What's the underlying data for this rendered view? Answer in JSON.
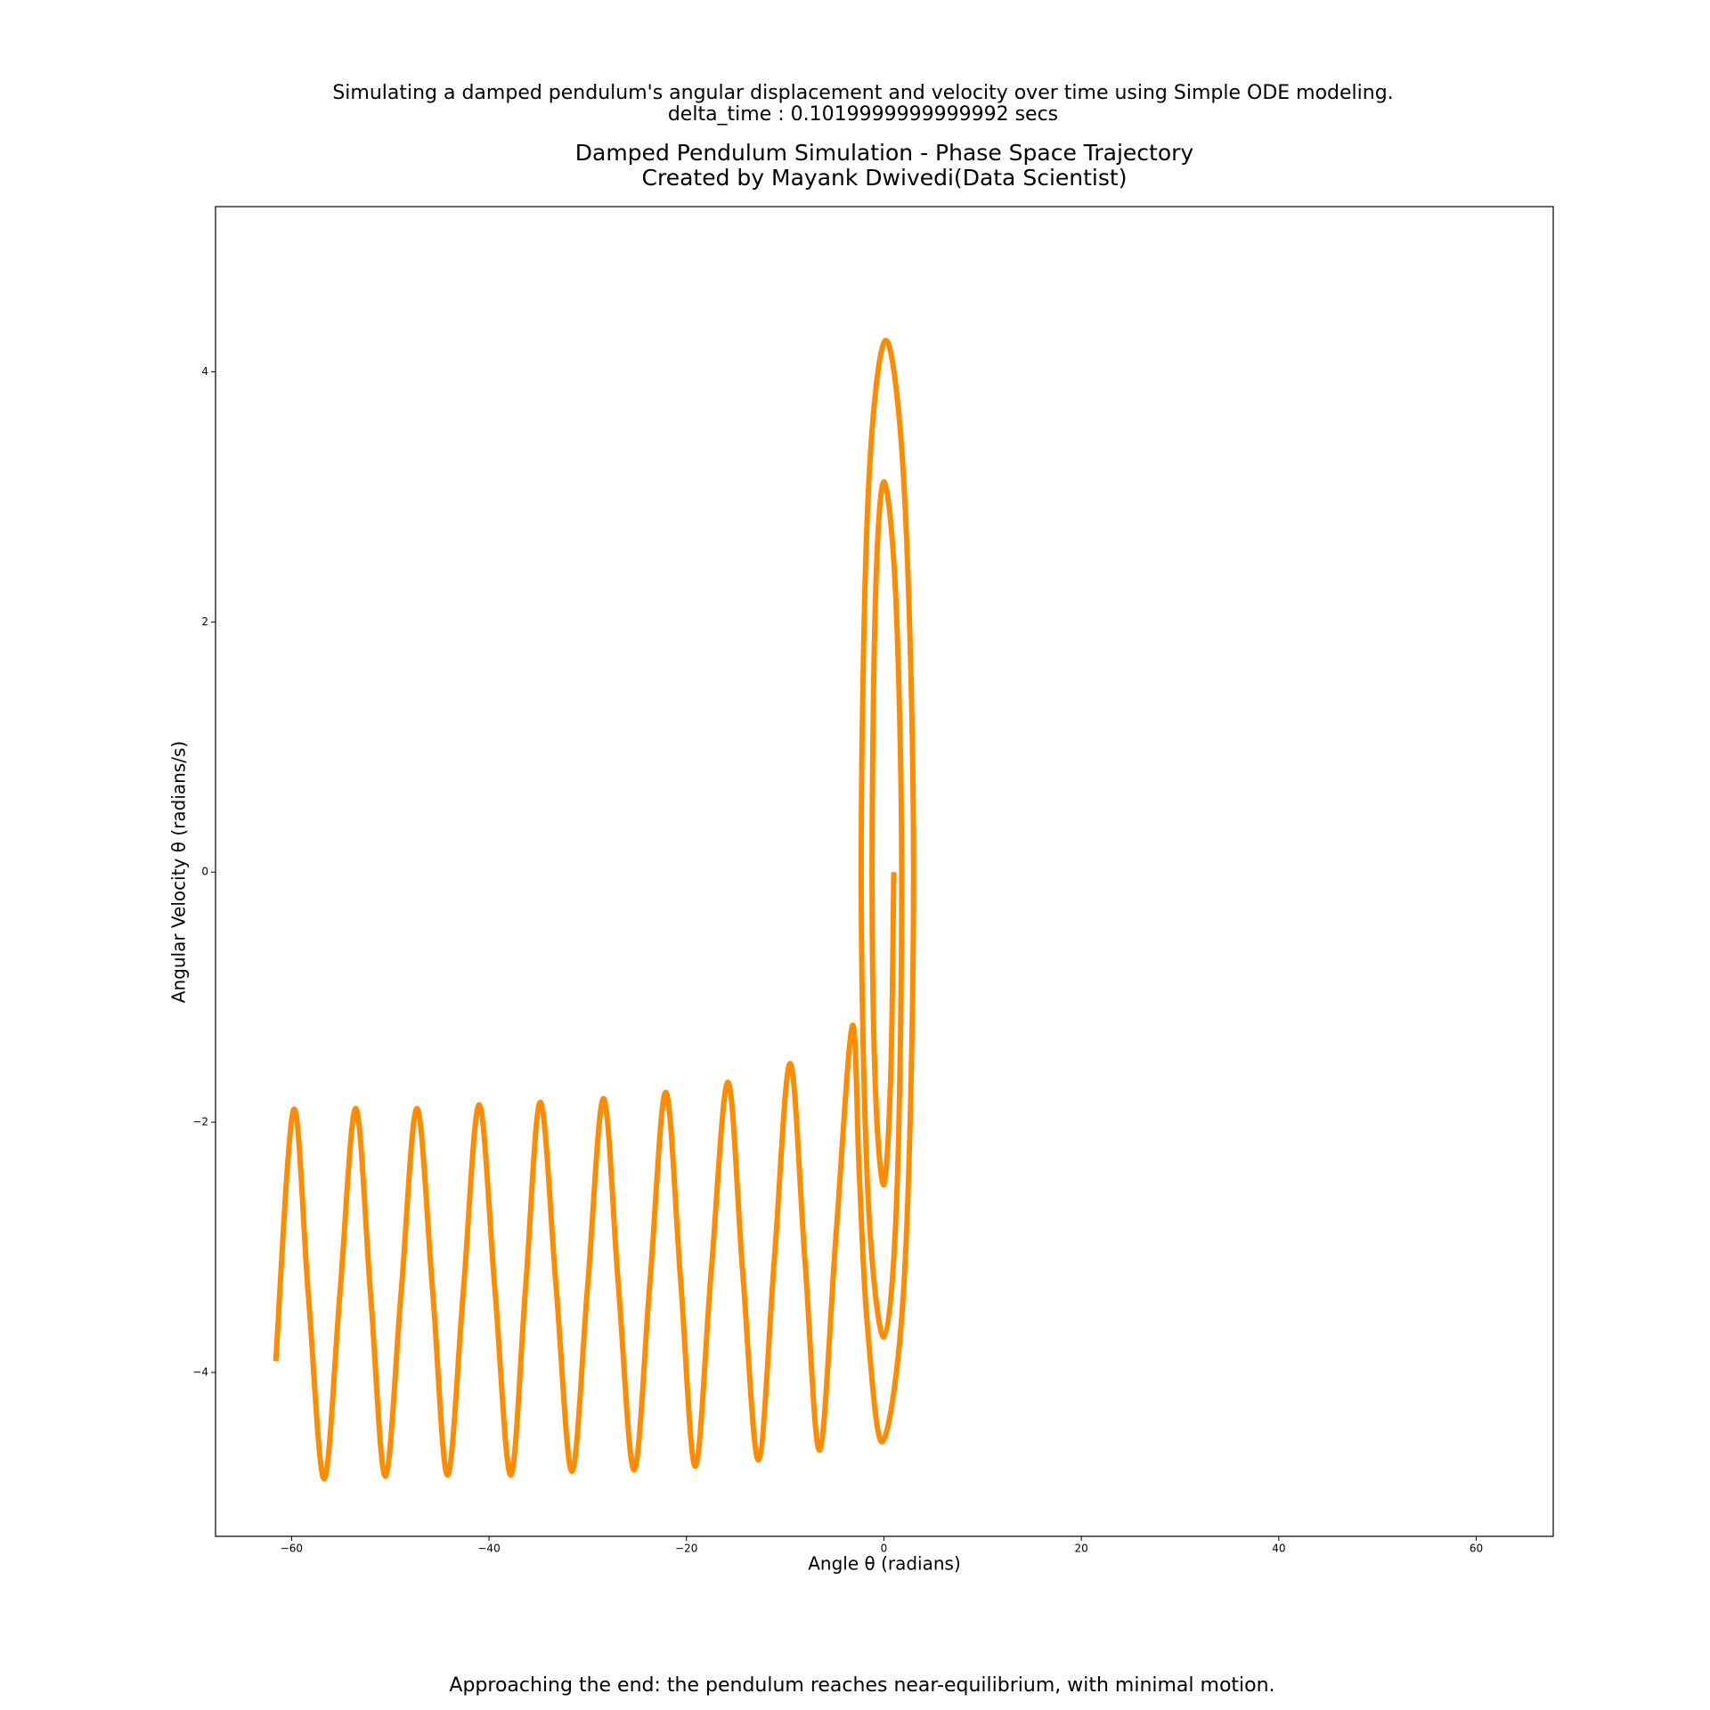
{
  "chart_data": {
    "type": "line",
    "suptitle": [
      "Simulating a damped pendulum's angular displacement and velocity over time using Simple ODE modeling.",
      "delta_time : 0.1019999999999992 secs"
    ],
    "title": [
      "Damped Pendulum Simulation - Phase Space Trajectory",
      "Created by Mayank Dwivedi(Data Scientist)"
    ],
    "xlabel": "Angle θ (radians)",
    "ylabel": "Angular Velocity θ (radians/s)",
    "annotation": "Approaching the end: the pendulum reaches near-equilibrium, with minimal motion.",
    "annotation_color": "#008000",
    "xlim": [
      -67.7,
      67.8
    ],
    "ylim": [
      -5.31,
      5.32
    ],
    "xticks": [
      {
        "value": -60,
        "label": "−60"
      },
      {
        "value": -40,
        "label": "−40"
      },
      {
        "value": -20,
        "label": "−20"
      },
      0,
      20,
      40,
      60
    ],
    "yticks": [
      {
        "value": -4,
        "label": "−4"
      },
      {
        "value": -2,
        "label": "−2"
      },
      0,
      2,
      4
    ],
    "series": [
      {
        "color": "#ff8c00",
        "x": [
          1.0,
          0.7,
          0.0,
          -0.85,
          -1.2,
          -0.85,
          0.0,
          1.2,
          1.8,
          1.3,
          0.0,
          -1.6,
          -2.3,
          -1.6,
          0.2,
          2.1,
          3.0,
          2.1,
          -0.1,
          -1.7,
          -2.5,
          -3.2,
          -4.85,
          -6.5,
          -8.0,
          -9.5,
          -11.1,
          -12.7,
          -14.3,
          -15.8,
          -17.5,
          -19.1,
          -20.6,
          -22.1,
          -23.7,
          -25.3,
          -26.9,
          -28.4,
          -30.0,
          -31.6,
          -33.2,
          -34.8,
          -36.3,
          -37.8,
          -39.4,
          -41.0,
          -42.6,
          -44.2,
          -45.7,
          -47.3,
          -48.9,
          -50.5,
          -52.0,
          -53.5,
          -55.1,
          -56.7,
          -58.3,
          -59.8,
          -61.6
        ],
        "values": [
          0.0,
          -1.6,
          -2.5,
          -1.75,
          0.0,
          2.2,
          3.12,
          2.2,
          0.0,
          -2.6,
          -3.72,
          -2.6,
          0.0,
          3.0,
          4.25,
          3.0,
          0.0,
          -3.2,
          -4.55,
          -3.6,
          -2.4,
          -1.23,
          -2.9,
          -4.62,
          -3.1,
          -1.53,
          -3.1,
          -4.7,
          -3.2,
          -1.68,
          -3.2,
          -4.75,
          -3.25,
          -1.76,
          -3.28,
          -4.78,
          -3.3,
          -1.81,
          -3.3,
          -4.79,
          -3.32,
          -1.84,
          -3.33,
          -4.82,
          -3.34,
          -1.86,
          -3.35,
          -4.82,
          -3.36,
          -1.89,
          -3.36,
          -4.83,
          -3.37,
          -1.89,
          -3.37,
          -4.85,
          -3.38,
          -1.9,
          -3.91
        ]
      }
    ]
  }
}
